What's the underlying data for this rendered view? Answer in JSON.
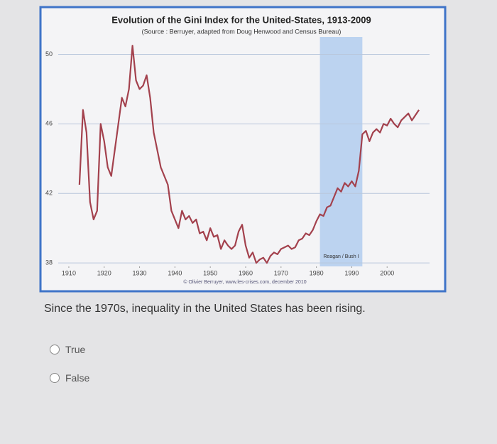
{
  "chart_data": {
    "type": "line",
    "title": "Evolution of the Gini Index for the United-States, 1913-2009",
    "subtitle": "(Source : Berruyer, adapted from Doug Henwood and Census Bureau)",
    "credit": "© Olivier Berruyer, www.les-crises.com, december 2010",
    "shaded_region": {
      "label": "Reagan / Bush I",
      "x": [
        1981,
        1993
      ],
      "color": "#a9c8ee"
    },
    "xlim": [
      1907,
      2012
    ],
    "xticks": [
      1910,
      1920,
      1930,
      1940,
      1950,
      1960,
      1970,
      1980,
      1990,
      2000
    ],
    "ylim": [
      37.8,
      51
    ],
    "yticks": [
      38,
      42,
      46,
      50
    ],
    "grid": true,
    "series": [
      {
        "color": "#a3414d",
        "x": [
          1913,
          1914,
          1915,
          1916,
          1917,
          1918,
          1919,
          1920,
          1921,
          1922,
          1923,
          1924,
          1925,
          1926,
          1927,
          1928,
          1929,
          1930,
          1931,
          1932,
          1933,
          1934,
          1935,
          1936,
          1937,
          1938,
          1939,
          1940,
          1941,
          1942,
          1943,
          1944,
          1945,
          1946,
          1947,
          1948,
          1949,
          1950,
          1951,
          1952,
          1953,
          1954,
          1955,
          1956,
          1957,
          1958,
          1959,
          1960,
          1961,
          1962,
          1963,
          1964,
          1965,
          1966,
          1967,
          1968,
          1969,
          1970,
          1971,
          1972,
          1973,
          1974,
          1975,
          1976,
          1977,
          1978,
          1979,
          1980,
          1981,
          1982,
          1983,
          1984,
          1985,
          1986,
          1987,
          1988,
          1989,
          1990,
          1991,
          1992,
          1993,
          1994,
          1995,
          1996,
          1997,
          1998,
          1999,
          2000,
          2001,
          2002,
          2003,
          2004,
          2005,
          2006,
          2007,
          2008,
          2009
        ],
        "values": [
          42.5,
          46.8,
          45.5,
          41.5,
          40.5,
          41.0,
          46.0,
          45.0,
          43.5,
          43.0,
          44.5,
          46.0,
          47.5,
          47.0,
          48.0,
          50.5,
          48.5,
          48.0,
          48.2,
          48.8,
          47.5,
          45.5,
          44.5,
          43.5,
          43.0,
          42.5,
          41.0,
          40.5,
          40.0,
          41.0,
          40.5,
          40.7,
          40.3,
          40.5,
          39.7,
          39.8,
          39.3,
          40.0,
          39.5,
          39.6,
          38.8,
          39.3,
          39.0,
          38.8,
          39.0,
          39.8,
          40.2,
          39.0,
          38.3,
          38.6,
          38.0,
          38.2,
          38.3,
          38.0,
          38.4,
          38.6,
          38.5,
          38.8,
          38.9,
          39.0,
          38.8,
          38.9,
          39.3,
          39.4,
          39.7,
          39.6,
          39.9,
          40.4,
          40.8,
          40.7,
          41.2,
          41.3,
          41.8,
          42.3,
          42.1,
          42.6,
          42.4,
          42.7,
          42.4,
          43.3,
          45.4,
          45.6,
          45.0,
          45.5,
          45.7,
          45.5,
          46.0,
          45.9,
          46.3,
          46.0,
          45.8,
          46.2,
          46.4,
          46.6,
          46.2,
          46.5,
          46.8
        ]
      }
    ]
  },
  "question": "Since the 1970s, inequality in the United States has been rising.",
  "options": [
    "True",
    "False"
  ]
}
